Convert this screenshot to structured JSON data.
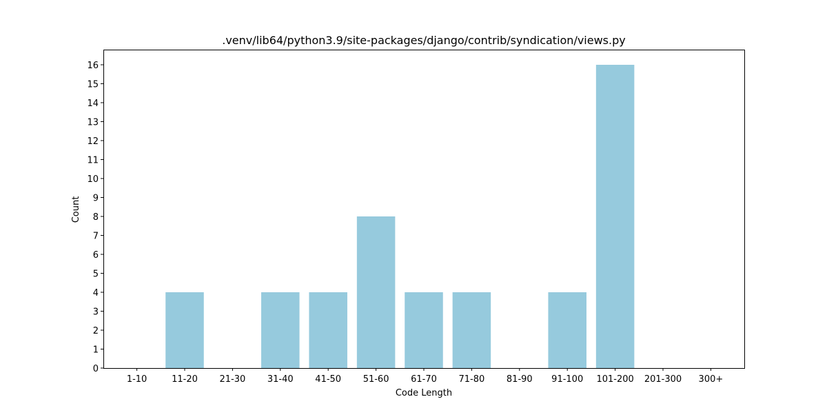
{
  "chart_data": {
    "type": "bar",
    "title": ".venv/lib64/python3.9/site-packages/django/contrib/syndication/views.py",
    "xlabel": "Code Length",
    "ylabel": "Count",
    "categories": [
      "1-10",
      "11-20",
      "21-30",
      "31-40",
      "41-50",
      "51-60",
      "61-70",
      "71-80",
      "81-90",
      "91-100",
      "101-200",
      "201-300",
      "300+"
    ],
    "values": [
      0,
      4,
      0,
      4,
      4,
      8,
      4,
      4,
      0,
      4,
      16,
      0,
      0
    ],
    "ylim": [
      0,
      16.8
    ],
    "yticks": [
      0,
      1,
      2,
      3,
      4,
      5,
      6,
      7,
      8,
      9,
      10,
      11,
      12,
      13,
      14,
      15,
      16
    ],
    "bar_color": "#96cadd",
    "grid": false,
    "legend": "none"
  }
}
